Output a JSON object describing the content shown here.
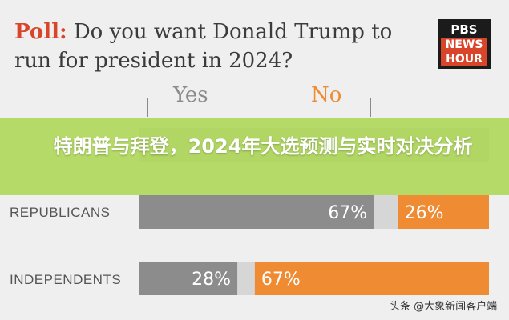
{
  "title": {
    "poll": "Poll:",
    "text": "Do you want Donald Trump to run for president in 2024?"
  },
  "logo": {
    "line1": "PBS",
    "line2": "NEWS",
    "line3": "HOUR"
  },
  "banner": "特朗普与拜登，2024年大选预测与实时对决分析",
  "watermark": "头条 @大象新闻客户端",
  "colors": {
    "yes": "#8c8c8c",
    "unsure": "#d6d6d6",
    "no": "#ef8b32",
    "brand": "#d9452b"
  },
  "chart_data": {
    "type": "bar",
    "orientation": "horizontal-stacked",
    "title": "Do you want Donald Trump to run for president in 2024?",
    "legend": [
      "Yes",
      "No"
    ],
    "categories": [
      "REPUBLICANS",
      "INDEPENDENTS"
    ],
    "series": [
      {
        "name": "Yes",
        "values": [
          67,
          28
        ]
      },
      {
        "name": "No",
        "values": [
          26,
          67
        ]
      }
    ],
    "data_labels": [
      [
        "67%",
        "26%"
      ],
      [
        "28%",
        "67%"
      ]
    ],
    "xlim": [
      0,
      100
    ]
  }
}
